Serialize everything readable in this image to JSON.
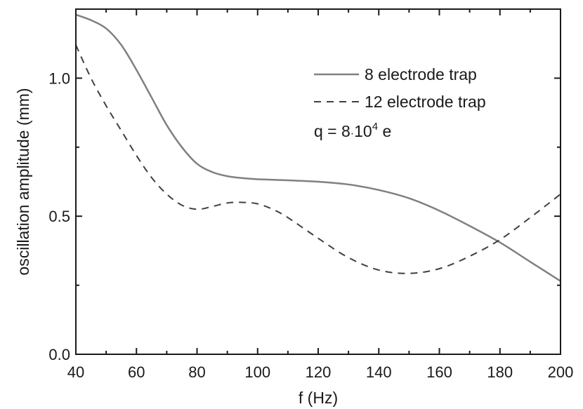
{
  "chart_data": {
    "type": "line",
    "title": "",
    "xlabel": "f (Hz)",
    "ylabel": "oscillation amplitude (mm)",
    "xlim": [
      40,
      200
    ],
    "ylim": [
      0.0,
      1.25
    ],
    "x_ticks": [
      40,
      60,
      80,
      100,
      120,
      140,
      160,
      180,
      200
    ],
    "x_tick_labels": [
      "40",
      "60",
      "80",
      "100",
      "120",
      "140",
      "160",
      "180",
      "200"
    ],
    "y_ticks": [
      0.0,
      0.5,
      1.0
    ],
    "y_tick_labels": [
      "0.0",
      "0.5",
      "1.0"
    ],
    "grid": false,
    "legend_position": "top-right",
    "series": [
      {
        "name": "8 electrode trap",
        "style": "solid",
        "color": "#808080",
        "x": [
          40,
          45,
          50,
          55,
          60,
          65,
          70,
          75,
          80,
          85,
          90,
          95,
          100,
          110,
          120,
          130,
          140,
          150,
          160,
          170,
          180,
          190,
          200
        ],
        "values": [
          1.23,
          1.21,
          1.18,
          1.12,
          1.03,
          0.93,
          0.83,
          0.75,
          0.69,
          0.66,
          0.645,
          0.638,
          0.634,
          0.63,
          0.625,
          0.615,
          0.595,
          0.565,
          0.52,
          0.465,
          0.405,
          0.335,
          0.265
        ]
      },
      {
        "name": "12 electrode trap",
        "style": "dashed",
        "color": "#404040",
        "x": [
          40,
          45,
          50,
          55,
          60,
          65,
          70,
          75,
          80,
          85,
          90,
          95,
          100,
          105,
          110,
          120,
          130,
          140,
          150,
          160,
          170,
          180,
          190,
          200
        ],
        "values": [
          1.12,
          1.0,
          0.9,
          0.81,
          0.72,
          0.64,
          0.58,
          0.54,
          0.525,
          0.535,
          0.548,
          0.55,
          0.545,
          0.525,
          0.495,
          0.42,
          0.35,
          0.305,
          0.293,
          0.31,
          0.355,
          0.415,
          0.495,
          0.58
        ]
      }
    ],
    "annotation": {
      "prefix": "q = 8",
      "dot": "·",
      "base": "10",
      "exponent": "4",
      "suffix": " e"
    }
  }
}
